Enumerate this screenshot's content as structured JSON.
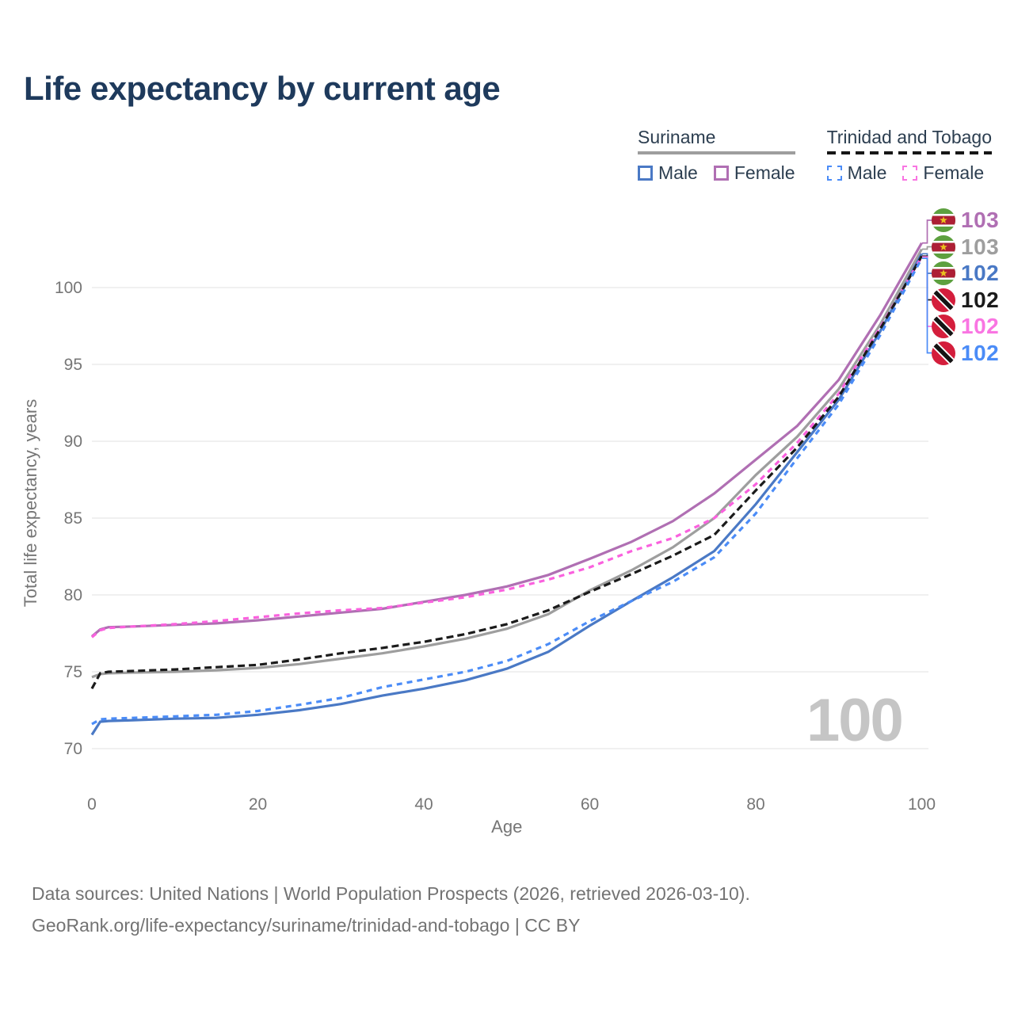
{
  "title": "Life expectancy by current age",
  "legend": {
    "groups": [
      {
        "title": "Suriname",
        "underline_style": "solid",
        "underline_color": "#9e9e9e",
        "items": [
          {
            "label": "Male",
            "color": "#4a79c5",
            "style": "solid"
          },
          {
            "label": "Female",
            "color": "#b06fb3",
            "style": "solid"
          }
        ]
      },
      {
        "title": "Trinidad and Tobago",
        "underline_style": "dashed",
        "underline_color": "#161616",
        "items": [
          {
            "label": "Male",
            "color": "#4b8cf7",
            "style": "dashed"
          },
          {
            "label": "Female",
            "color": "#f975e2",
            "style": "dashed"
          }
        ]
      }
    ]
  },
  "chart_data": {
    "type": "line",
    "title": "Life expectancy by current age",
    "xlabel": "Age",
    "ylabel": "Total life expectancy, years",
    "xlim": [
      0,
      100
    ],
    "ylim": [
      70,
      103.5
    ],
    "x_ticks": [
      0,
      20,
      40,
      60,
      80,
      100
    ],
    "y_ticks": [
      70,
      75,
      80,
      85,
      90,
      95,
      100
    ],
    "grid": "horizontal-only",
    "legend_position": "top-right",
    "x": [
      0,
      1,
      2,
      5,
      10,
      15,
      20,
      25,
      30,
      35,
      40,
      45,
      50,
      55,
      60,
      65,
      70,
      75,
      80,
      85,
      90,
      95,
      100
    ],
    "series": [
      {
        "key": "sur_f",
        "name": "Suriname Female",
        "country": "Suriname",
        "sex": "Female",
        "color": "#b06fb3",
        "dash": "solid",
        "values": [
          77.3,
          77.75,
          77.9,
          77.95,
          78.05,
          78.15,
          78.35,
          78.6,
          78.85,
          79.1,
          79.55,
          80.0,
          80.55,
          81.3,
          82.35,
          83.45,
          84.8,
          86.6,
          88.8,
          91.0,
          94.0,
          98.2,
          102.9
        ]
      },
      {
        "key": "sur_t",
        "name": "Suriname Both sexes",
        "country": "Suriname",
        "sex": "Both",
        "color": "#9e9e9e",
        "dash": "solid",
        "values": [
          74.65,
          74.85,
          74.9,
          74.95,
          75.0,
          75.1,
          75.25,
          75.5,
          75.85,
          76.2,
          76.65,
          77.15,
          77.8,
          78.75,
          80.3,
          81.6,
          83.1,
          85.0,
          87.8,
          90.3,
          93.4,
          97.6,
          102.5
        ]
      },
      {
        "key": "sur_m",
        "name": "Suriname Male",
        "country": "Suriname",
        "sex": "Male",
        "color": "#4a79c5",
        "dash": "solid",
        "values": [
          70.9,
          71.75,
          71.8,
          71.85,
          71.95,
          72.0,
          72.2,
          72.5,
          72.9,
          73.45,
          73.9,
          74.45,
          75.2,
          76.3,
          78.0,
          79.6,
          81.15,
          82.85,
          85.9,
          89.3,
          92.7,
          97.15,
          102.2
        ]
      },
      {
        "key": "tto_f",
        "name": "Trinidad and Tobago Female",
        "country": "Trinidad and Tobago",
        "sex": "Female",
        "color": "#fa61de",
        "dash": "dashed",
        "values": [
          77.25,
          77.7,
          77.85,
          77.95,
          78.1,
          78.3,
          78.55,
          78.8,
          79.0,
          79.15,
          79.5,
          79.85,
          80.35,
          81.0,
          81.8,
          82.85,
          83.7,
          85.0,
          87.2,
          89.9,
          93.1,
          97.4,
          102.0
        ]
      },
      {
        "key": "tto_t",
        "name": "Trinidad and Tobago Both sexes",
        "country": "Trinidad and Tobago",
        "sex": "Both",
        "color": "#1b1b1b",
        "dash": "dashed",
        "values": [
          73.9,
          74.9,
          75.0,
          75.05,
          75.15,
          75.3,
          75.45,
          75.8,
          76.2,
          76.55,
          76.95,
          77.45,
          78.1,
          79.0,
          80.2,
          81.35,
          82.55,
          83.9,
          86.8,
          89.6,
          92.9,
          97.3,
          102.05
        ]
      },
      {
        "key": "tto_m",
        "name": "Trinidad and Tobago Male",
        "country": "Trinidad and Tobago",
        "sex": "Male",
        "color": "#4b8cf7",
        "dash": "dashed",
        "values": [
          71.6,
          71.9,
          71.95,
          72.0,
          72.1,
          72.2,
          72.45,
          72.85,
          73.3,
          74.0,
          74.5,
          75.0,
          75.7,
          76.8,
          78.3,
          79.6,
          80.85,
          82.45,
          85.3,
          88.9,
          92.4,
          96.9,
          101.9
        ]
      }
    ]
  },
  "endpoints": {
    "items": [
      {
        "series_key": "sur_f",
        "flag": "suriname",
        "value": "103",
        "color": "#b06fb3"
      },
      {
        "series_key": "sur_t",
        "flag": "suriname",
        "value": "103",
        "color": "#9e9e9e"
      },
      {
        "series_key": "sur_m",
        "flag": "suriname",
        "value": "102",
        "color": "#4a79c5"
      },
      {
        "series_key": "tto_t",
        "flag": "trinidad-and-tobago",
        "value": "102",
        "color": "#1b1b1b"
      },
      {
        "series_key": "tto_f",
        "flag": "trinidad-and-tobago",
        "value": "102",
        "color": "#f975e2"
      },
      {
        "series_key": "tto_m",
        "flag": "trinidad-and-tobago",
        "value": "102",
        "color": "#4b8cf7"
      }
    ]
  },
  "watermark": "100",
  "footer": {
    "line1": "Data sources: United Nations | World Population Prospects (2026, retrieved 2026-03-10).",
    "line2": "GeoRank.org/life-expectancy/suriname/trinidad-and-tobago | CC BY"
  },
  "colors": {
    "title": "#1e3a5c",
    "axis_text": "#767676",
    "gridline": "#ececec",
    "watermark": "#c5c5c5",
    "footer_text": "#737373"
  }
}
